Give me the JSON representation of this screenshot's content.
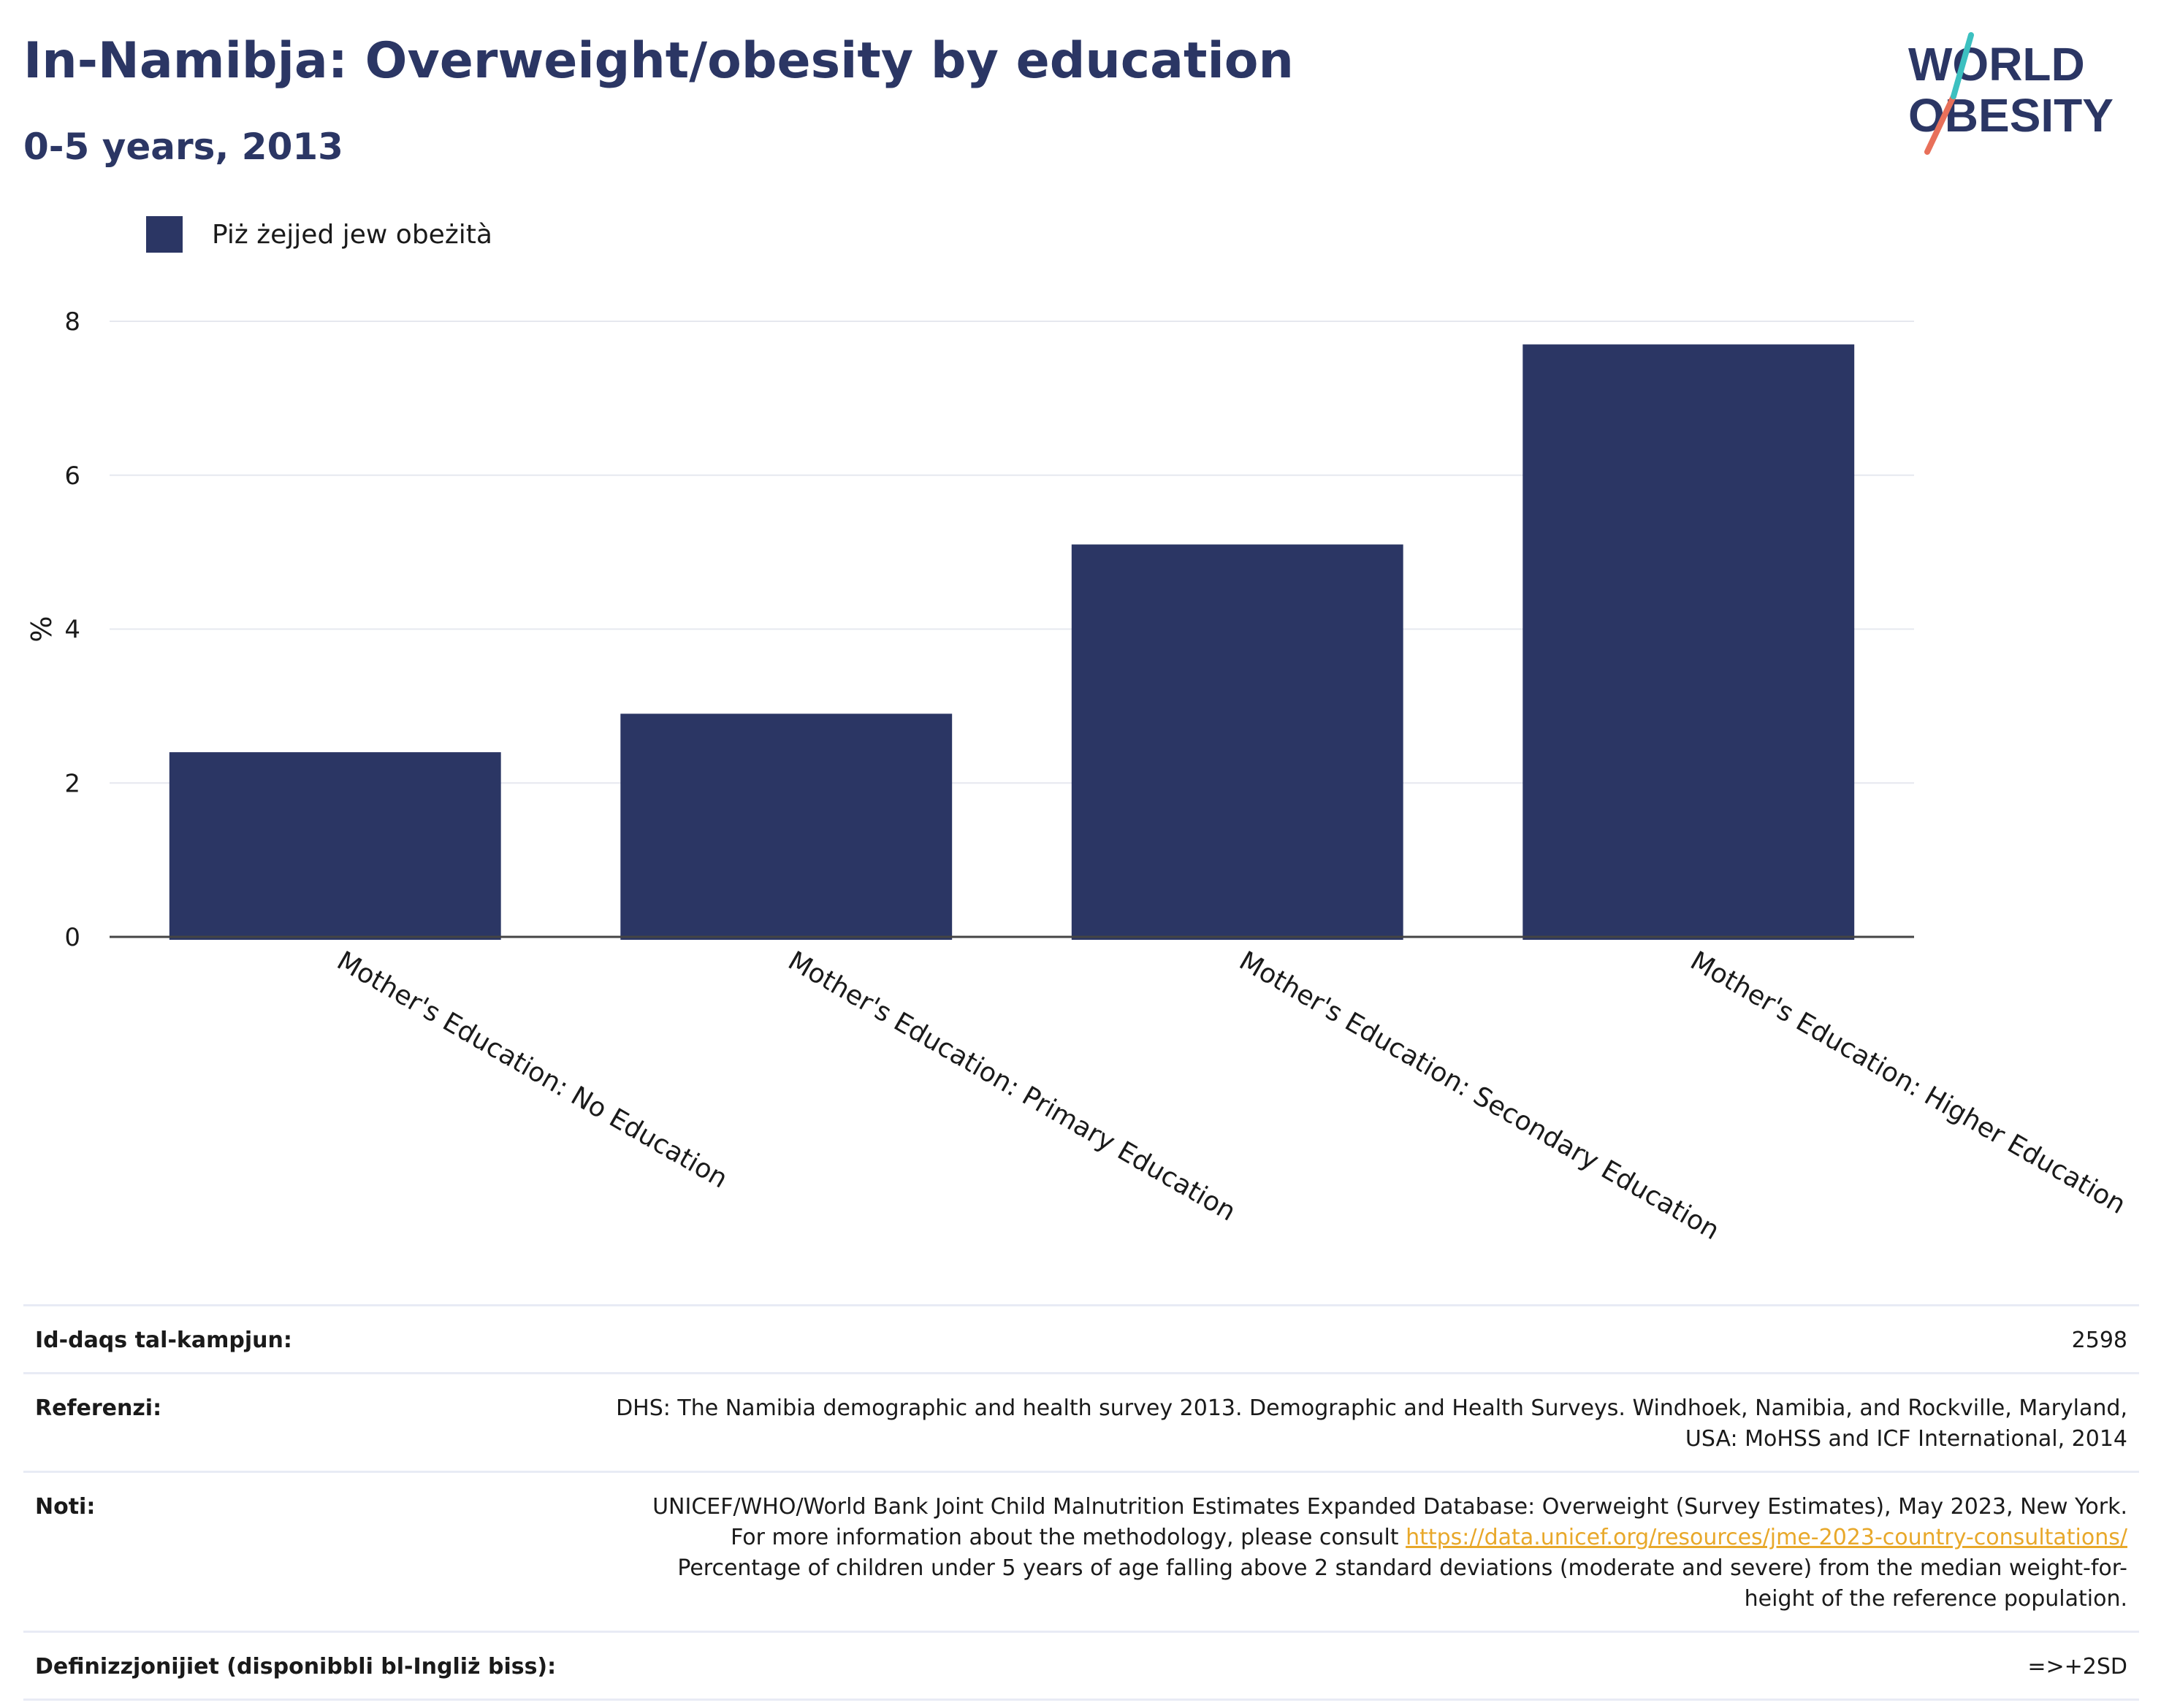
{
  "header": {
    "title": "In-Namibja: Overweight/obesity by education",
    "subtitle": "0-5 years, 2013"
  },
  "logo": {
    "line1": "WORLD",
    "line2": "OBESITY"
  },
  "legend": {
    "label": "Piż żejjed jew obeżità",
    "color": "#2b3664"
  },
  "chart_data": {
    "type": "bar",
    "categories": [
      "Mother's Education: No Education",
      "Mother's Education: Primary Education",
      "Mother's Education: Secondary Education",
      "Mother's Education: Higher Education"
    ],
    "series": [
      {
        "name": "Piż żejjed jew obeżità",
        "values": [
          2.4,
          2.9,
          5.1,
          7.7
        ]
      }
    ],
    "ylabel": "%",
    "ylim": [
      0,
      8
    ],
    "yticks": [
      "0",
      "2",
      "4",
      "6",
      "8"
    ],
    "grid": true,
    "legend_position": "top-left",
    "bar_color": "#2b3664"
  },
  "info": {
    "sample_size_label": "Id-daqs tal-kampjun:",
    "sample_size_value": "2598",
    "references_label": "Referenzi:",
    "references_value": "DHS: The Namibia demographic and health survey 2013. Demographic and Health Surveys. Windhoek, Namibia, and Rockville, Maryland, USA: MoHSS and ICF International, 2014",
    "notes_label": "Noti:",
    "notes_text_1": "UNICEF/WHO/World Bank Joint Child Malnutrition Estimates Expanded Database: Overweight (Survey Estimates), May 2023, New York. For more information about the methodology, please consult",
    "notes_link": "https://data.unicef.org/resources/jme-2023-country-consultations/",
    "notes_text_2": "Percentage of children under 5 years of age falling above 2 standard deviations (moderate and severe) from the median weight-for-height of the reference population.",
    "definitions_label": "Definizzjonijiet (disponibbli bl-Ingliż biss):",
    "definitions_value": "=>+2SD"
  }
}
